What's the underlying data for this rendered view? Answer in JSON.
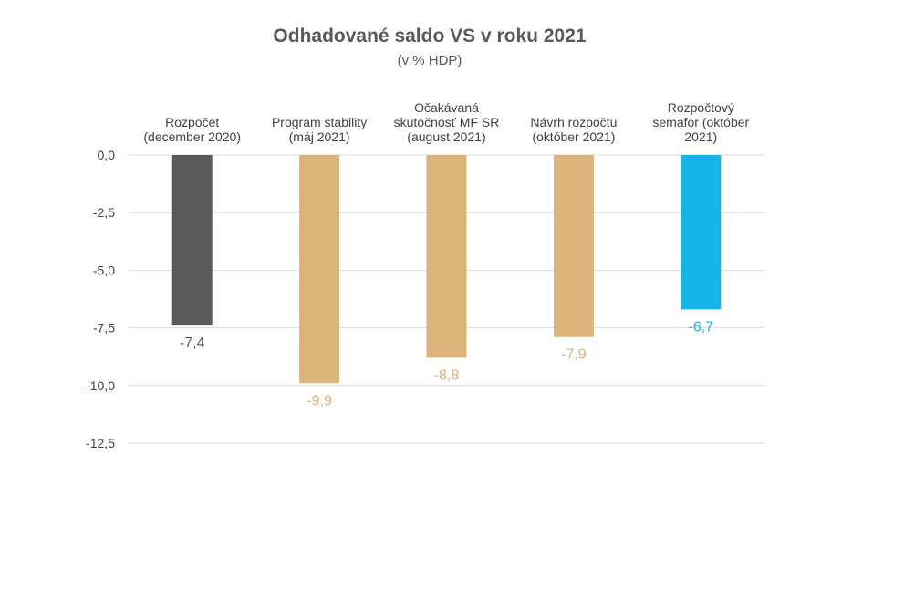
{
  "chart_data": {
    "type": "bar",
    "title": "Odhadované saldo VS v roku 2021",
    "subtitle": "(v % HDP)",
    "categories": [
      [
        "Rozpočet",
        "(december 2020)"
      ],
      [
        "Program stability",
        "(máj 2021)"
      ],
      [
        "Očakávaná",
        "skutočnosť MF SR",
        "(august 2021)"
      ],
      [
        "Návrh rozpočtu",
        "(október 2021)"
      ],
      [
        "Rozpočtový",
        "semafor (október",
        "2021)"
      ]
    ],
    "values": [
      -7.4,
      -9.9,
      -8.8,
      -7.9,
      -6.7
    ],
    "value_labels": [
      "-7,4",
      "-9,9",
      "-8,8",
      "-7,9",
      "-6,7"
    ],
    "colors": [
      "#595959",
      "#dcb37a",
      "#dcb37a",
      "#dcb37a",
      "#16b5e8"
    ],
    "ylim": [
      -12.5,
      0
    ],
    "yticks": [
      0,
      -2.5,
      -5,
      -7.5,
      -10,
      -12.5
    ],
    "ytick_labels": [
      "0,0",
      "-2,5",
      "-5,0",
      "-7,5",
      "-10,0",
      "-12,5"
    ],
    "grid": true,
    "xlabel": "",
    "ylabel": ""
  }
}
